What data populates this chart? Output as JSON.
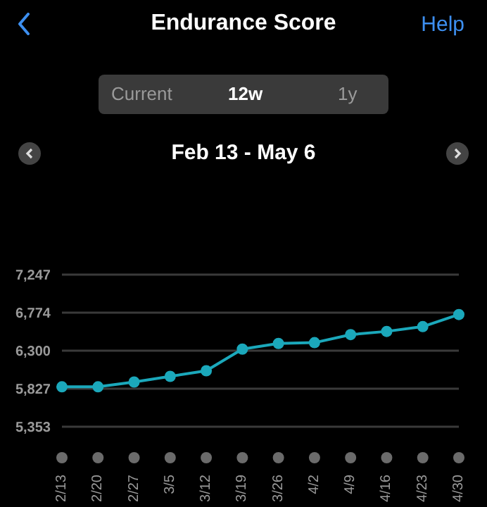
{
  "chart_data": {
    "type": "line",
    "title": "Endurance Score",
    "subtitle": "Feb 13 - May 6",
    "annotations": [
      "Help",
      "Current",
      "12w",
      "1y"
    ],
    "categories": [
      "2/13",
      "2/20",
      "2/27",
      "3/5",
      "3/12",
      "3/19",
      "3/26",
      "4/2",
      "4/9",
      "4/16",
      "4/23",
      "4/30"
    ],
    "series": [
      {
        "color": "#1ba8bb",
        "values": [
          5850,
          5850,
          5910,
          5980,
          6050,
          6320,
          6390,
          6400,
          6500,
          6540,
          6600,
          6750
        ]
      }
    ],
    "ylim": [
      5353,
      7247
    ],
    "yticks": [
      {
        "value": 5353,
        "label": "5,353"
      },
      {
        "value": 5827,
        "label": "5,827"
      },
      {
        "value": 6300,
        "label": "6,300"
      },
      {
        "value": 6774,
        "label": "6,774"
      },
      {
        "value": 7247,
        "label": "7,247"
      }
    ],
    "grid": "y",
    "marker": "circle",
    "line_style": "solid",
    "legend": false
  }
}
